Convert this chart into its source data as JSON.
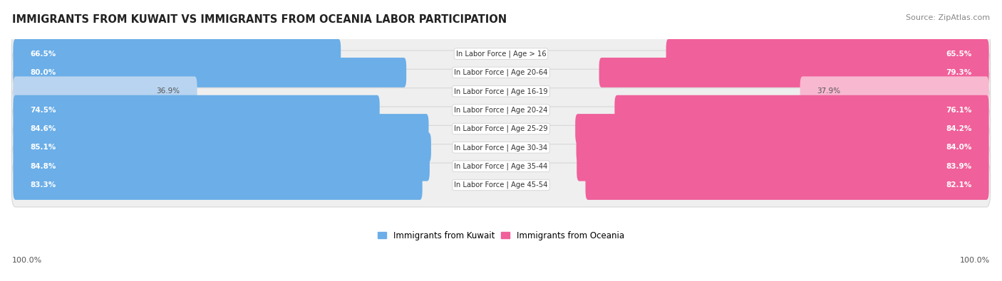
{
  "title": "IMMIGRANTS FROM KUWAIT VS IMMIGRANTS FROM OCEANIA LABOR PARTICIPATION",
  "source": "Source: ZipAtlas.com",
  "categories": [
    "In Labor Force | Age > 16",
    "In Labor Force | Age 20-64",
    "In Labor Force | Age 16-19",
    "In Labor Force | Age 20-24",
    "In Labor Force | Age 25-29",
    "In Labor Force | Age 30-34",
    "In Labor Force | Age 35-44",
    "In Labor Force | Age 45-54"
  ],
  "kuwait_values": [
    66.5,
    80.0,
    36.9,
    74.5,
    84.6,
    85.1,
    84.8,
    83.3
  ],
  "oceania_values": [
    65.5,
    79.3,
    37.9,
    76.1,
    84.2,
    84.0,
    83.9,
    82.1
  ],
  "kuwait_color_strong": "#6baee8",
  "kuwait_color_light": "#b8d4f0",
  "oceania_color_strong": "#f0609a",
  "oceania_color_light": "#f8b8d0",
  "background_row_color": "#efefef",
  "background_row_edge": "#d8d8d8",
  "max_value": 100.0,
  "legend_kuwait": "Immigrants from Kuwait",
  "legend_oceania": "Immigrants from Oceania",
  "bottom_left_label": "100.0%",
  "bottom_right_label": "100.0%",
  "light_rows": [
    2
  ]
}
